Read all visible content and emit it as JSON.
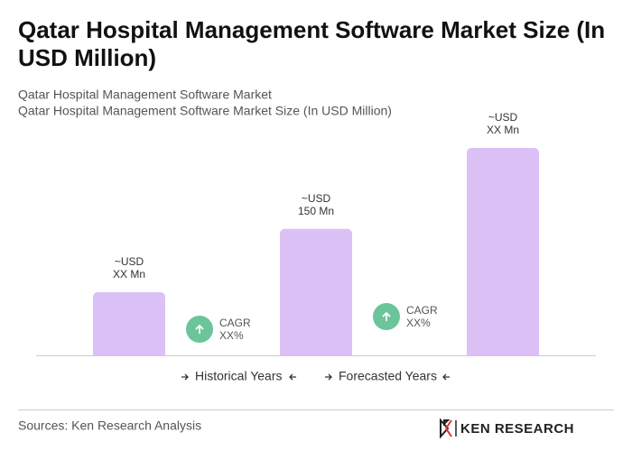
{
  "chart_data": {
    "type": "bar",
    "title": [
      "Qatar Hospital Management Software Market Size (In",
      "USD Million)"
    ],
    "subtitle": [
      "Qatar Hospital Management Software Market",
      "Qatar Hospital Management Software Market Size (In USD Million)"
    ],
    "values": [
      75,
      150,
      246
    ],
    "value_labels": [
      [
        "~USD",
        "XX Mn"
      ],
      [
        "~USD",
        "150 Mn"
      ],
      [
        "~USD",
        "XX Mn"
      ]
    ],
    "color": "#dcc1f6",
    "cagr": [
      [
        "CAGR",
        "XX%"
      ],
      [
        "CAGR",
        "XX%"
      ]
    ],
    "cagr_color": "#6cc49a",
    "legend": [
      "Historical Years",
      "Forecasted Years"
    ],
    "source": "Sources: Ken Research Analysis"
  },
  "logo": "KEN RESEARCH"
}
